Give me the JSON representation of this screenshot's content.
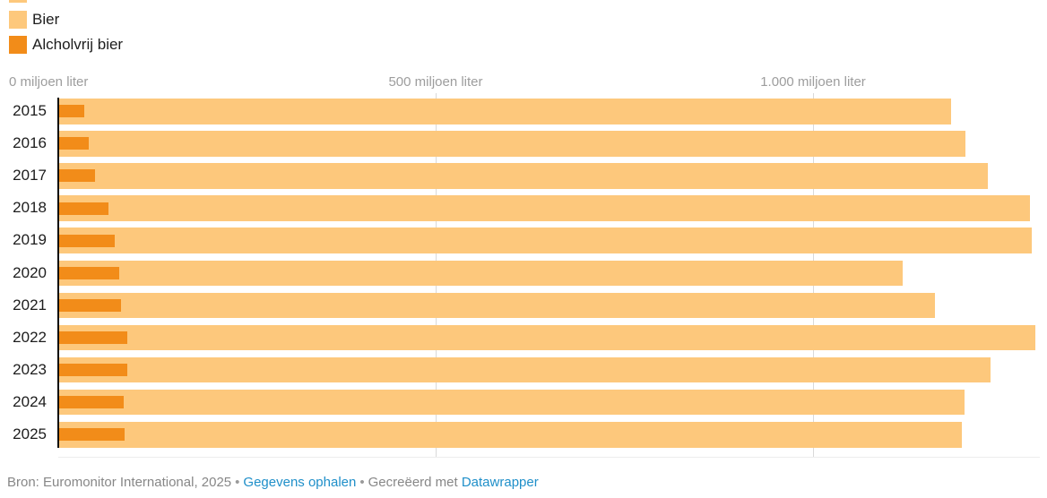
{
  "legend": {
    "items": [
      {
        "label": "Bier",
        "color": "#fdc87c"
      },
      {
        "label": "Alcholvrij bier",
        "color": "#f28c19"
      }
    ]
  },
  "axis": {
    "tick_labels": [
      "0 miljoen liter",
      "500 miljoen liter",
      "1.000 miljoen liter"
    ],
    "tick_values": [
      0,
      500,
      1000
    ]
  },
  "chart_data": {
    "type": "bar",
    "orientation": "horizontal",
    "unit": "miljoen liter",
    "categories": [
      "2015",
      "2016",
      "2017",
      "2018",
      "2019",
      "2020",
      "2021",
      "2022",
      "2023",
      "2024",
      "2025"
    ],
    "series": [
      {
        "name": "Bier",
        "color": "#fdc87c",
        "values": [
          1183,
          1202,
          1231,
          1288,
          1290,
          1119,
          1161,
          1295,
          1235,
          1201,
          1197
        ]
      },
      {
        "name": "Alcholvrij bier",
        "color": "#f28c19",
        "values": [
          34,
          40,
          49,
          67,
          75,
          81,
          83,
          92,
          91,
          87,
          88
        ]
      }
    ],
    "xlim": [
      0,
      1310
    ],
    "gridlines": [
      500,
      1000
    ],
    "grid": true,
    "legend_position": "top-left",
    "axis_color": "#0c0c0c",
    "gridline_color": "#d9d9d9"
  },
  "footer": {
    "source": "Bron: Euromonitor International, 2025",
    "separator": "•",
    "data_link": "Gegevens ophalen",
    "created_prefix": "Gecreëerd met",
    "created_link": "Datawrapper",
    "link_color": "#1f8fc9"
  }
}
